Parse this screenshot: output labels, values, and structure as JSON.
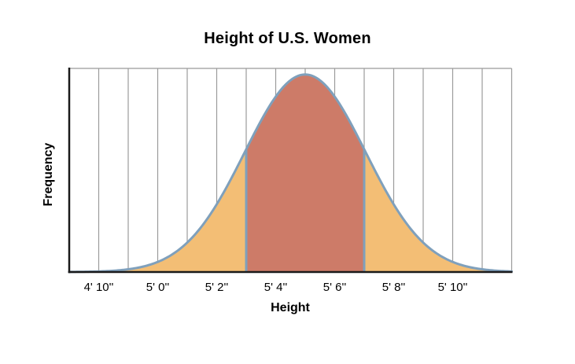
{
  "chart_data": {
    "type": "area",
    "title": "Height of U.S. Women",
    "xlabel": "Height",
    "ylabel": "Frequency",
    "x_domain_inches": [
      57,
      72
    ],
    "gridline_every_inches": 1,
    "x_ticks": [
      {
        "inches": 58,
        "label": "4' 10''"
      },
      {
        "inches": 60,
        "label": "5' 0''"
      },
      {
        "inches": 62,
        "label": "5' 2''"
      },
      {
        "inches": 64,
        "label": "5' 4''"
      },
      {
        "inches": 66,
        "label": "5' 6''"
      },
      {
        "inches": 68,
        "label": "5' 8''"
      },
      {
        "inches": 70,
        "label": "5' 10''"
      }
    ],
    "curve": {
      "shape": "normal",
      "mean_inches": 65,
      "sd_inches": 2.05,
      "peak_fraction": 0.97
    },
    "regions": [
      {
        "name": "lower-tail",
        "from_inches": 57,
        "to_inches": 63,
        "fill": "#F3BE75"
      },
      {
        "name": "middle-band",
        "from_inches": 63,
        "to_inches": 67,
        "fill": "#CD7B68"
      },
      {
        "name": "upper-tail",
        "from_inches": 67,
        "to_inches": 72,
        "fill": "#F3BE75"
      }
    ],
    "colors": {
      "curve_stroke": "#7FA0BC",
      "gridline": "#9B9B9B",
      "axis": "#1A1A1A",
      "background": "#FFFFFF",
      "text": "#000000"
    },
    "grid": "vertical-only",
    "legend": "none",
    "ylim": [
      0,
      1
    ]
  }
}
